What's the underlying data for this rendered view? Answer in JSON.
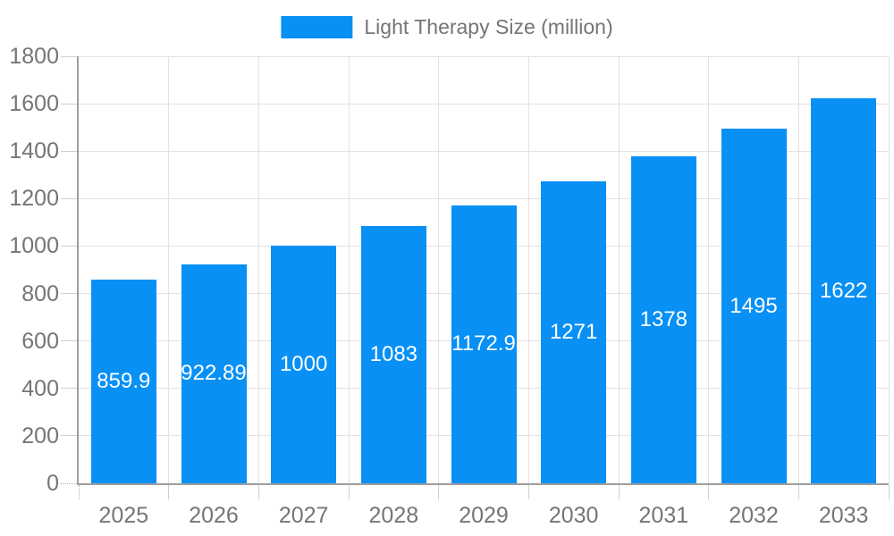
{
  "chart_data": {
    "type": "bar",
    "title": "Light Therapy Size (million)",
    "categories": [
      "2025",
      "2026",
      "2027",
      "2028",
      "2029",
      "2030",
      "2031",
      "2032",
      "2033"
    ],
    "values": [
      859.9,
      922.89,
      1000,
      1083,
      1172.9,
      1271,
      1378,
      1495,
      1622
    ],
    "value_labels": [
      "859.9",
      "922.89",
      "1000",
      "1083",
      "1172.9",
      "1271",
      "1378",
      "1495",
      "1622"
    ],
    "xlabel": "",
    "ylabel": "",
    "ylim": [
      0,
      1800
    ],
    "ytick_step": 200,
    "ytick_labels": [
      "0",
      "200",
      "400",
      "600",
      "800",
      "1000",
      "1200",
      "1400",
      "1600",
      "1800"
    ],
    "grid": true,
    "legend_position": "top-center",
    "bar_color": "#0890F5",
    "value_label_color": "#FFFFFF",
    "axis_text_color": "#757575"
  }
}
